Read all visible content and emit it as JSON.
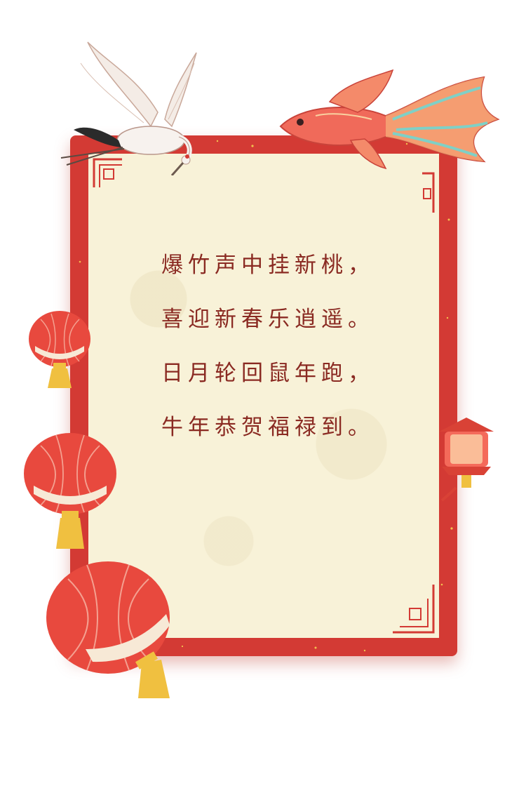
{
  "poem": {
    "lines": [
      "爆竹声中挂新桃，",
      "喜迎新春乐逍遥。",
      "日月轮回鼠年跑，",
      "牛年恭贺福禄到。"
    ]
  },
  "colors": {
    "frame": "#d33a34",
    "paper": "#f8f2d8",
    "text": "#8a2a22",
    "lantern": "#e8493e",
    "gold": "#f0c040"
  },
  "decorations": [
    "crane-icon",
    "koi-fish-icon",
    "red-lantern-icon",
    "palace-lantern-icon"
  ]
}
